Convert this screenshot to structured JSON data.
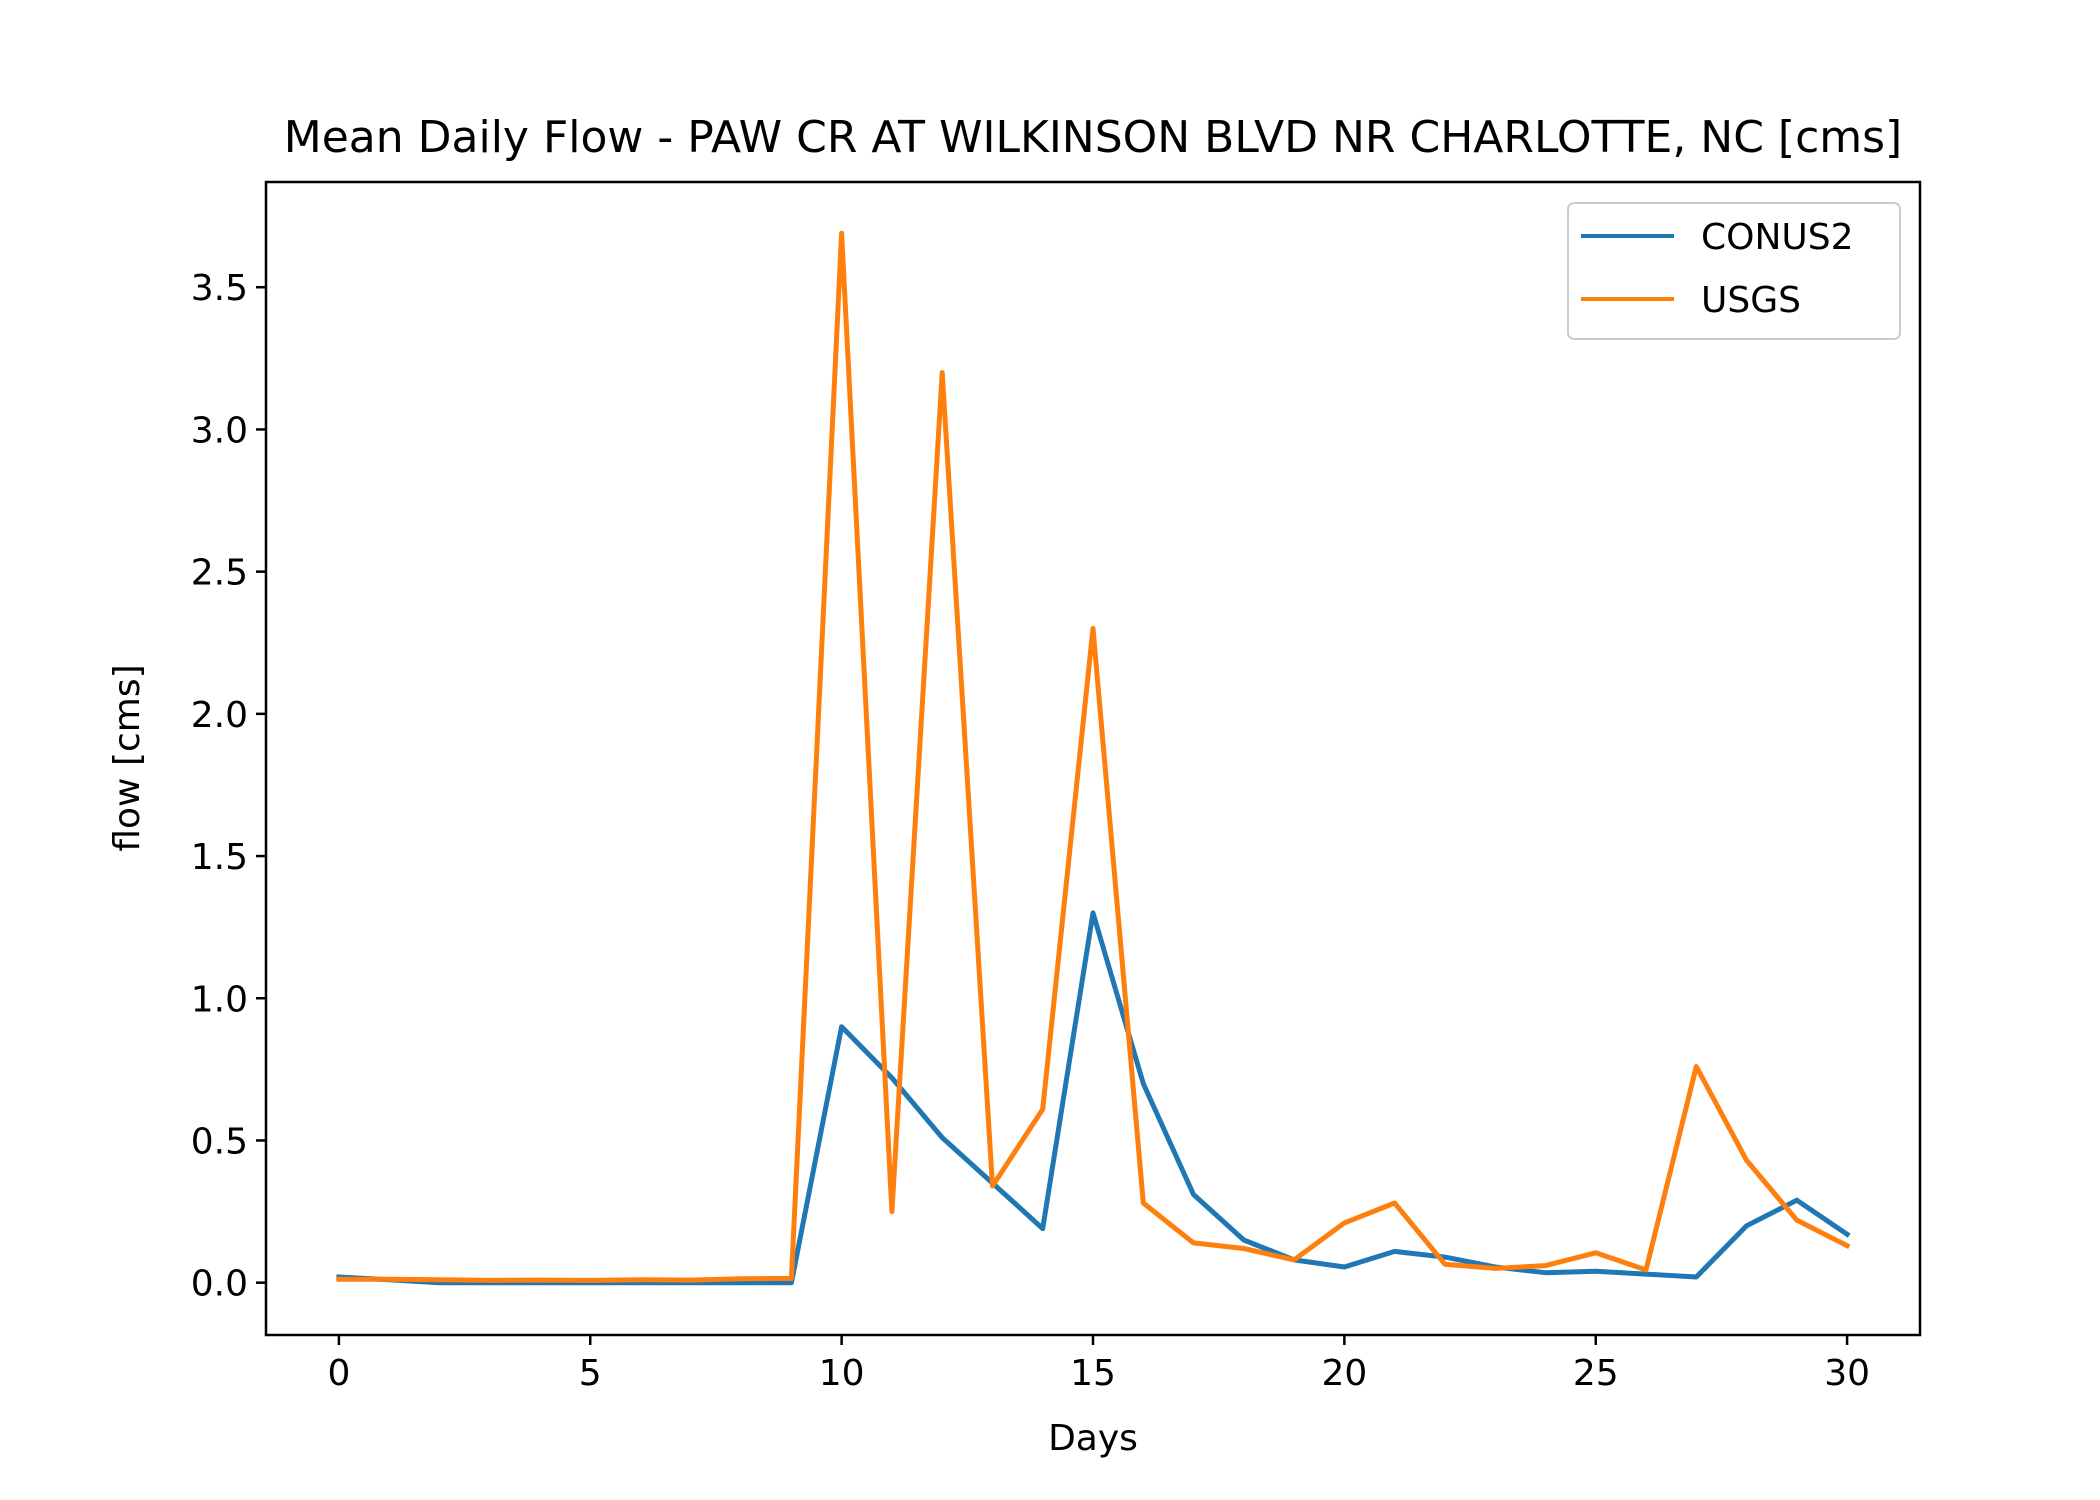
{
  "chart_data": {
    "type": "line",
    "title": "Mean Daily Flow - PAW CR AT WILKINSON BLVD NR CHARLOTTE, NC [cms]",
    "xlabel": "Days",
    "ylabel": "flow [cms]",
    "xlim": [
      -1.45,
      31.45
    ],
    "ylim": [
      -0.184,
      3.87
    ],
    "xticks": [
      0,
      5,
      10,
      15,
      20,
      25,
      30
    ],
    "xtick_labels": [
      "0",
      "5",
      "10",
      "15",
      "20",
      "25",
      "30"
    ],
    "yticks": [
      0.0,
      0.5,
      1.0,
      1.5,
      2.0,
      2.5,
      3.0,
      3.5
    ],
    "ytick_labels": [
      "0.0",
      "0.5",
      "1.0",
      "1.5",
      "2.0",
      "2.5",
      "3.0",
      "3.5"
    ],
    "grid": false,
    "legend_position": "top-right",
    "x": [
      0,
      1,
      2,
      3,
      4,
      5,
      6,
      7,
      8,
      9,
      10,
      11,
      12,
      13,
      14,
      15,
      16,
      17,
      18,
      19,
      20,
      21,
      22,
      23,
      24,
      25,
      26,
      27,
      28,
      29,
      30
    ],
    "series": [
      {
        "name": "CONUS2",
        "color": "#1f77b4",
        "values": [
          0.02,
          0.01,
          0.0,
          0.0,
          0.0,
          0.0,
          0.0,
          0.0,
          0.0,
          0.0,
          0.9,
          0.72,
          0.51,
          0.35,
          0.19,
          1.3,
          0.7,
          0.31,
          0.15,
          0.08,
          0.055,
          0.11,
          0.09,
          0.055,
          0.035,
          0.04,
          0.03,
          0.02,
          0.2,
          0.29,
          0.17
        ]
      },
      {
        "name": "USGS",
        "color": "#ff7f0e",
        "values": [
          0.012,
          0.012,
          0.01,
          0.008,
          0.009,
          0.008,
          0.01,
          0.009,
          0.014,
          0.015,
          3.69,
          0.25,
          3.2,
          0.34,
          0.61,
          2.3,
          0.28,
          0.14,
          0.12,
          0.08,
          0.21,
          0.28,
          0.065,
          0.05,
          0.06,
          0.105,
          0.045,
          0.76,
          0.43,
          0.22,
          0.13
        ]
      }
    ]
  }
}
